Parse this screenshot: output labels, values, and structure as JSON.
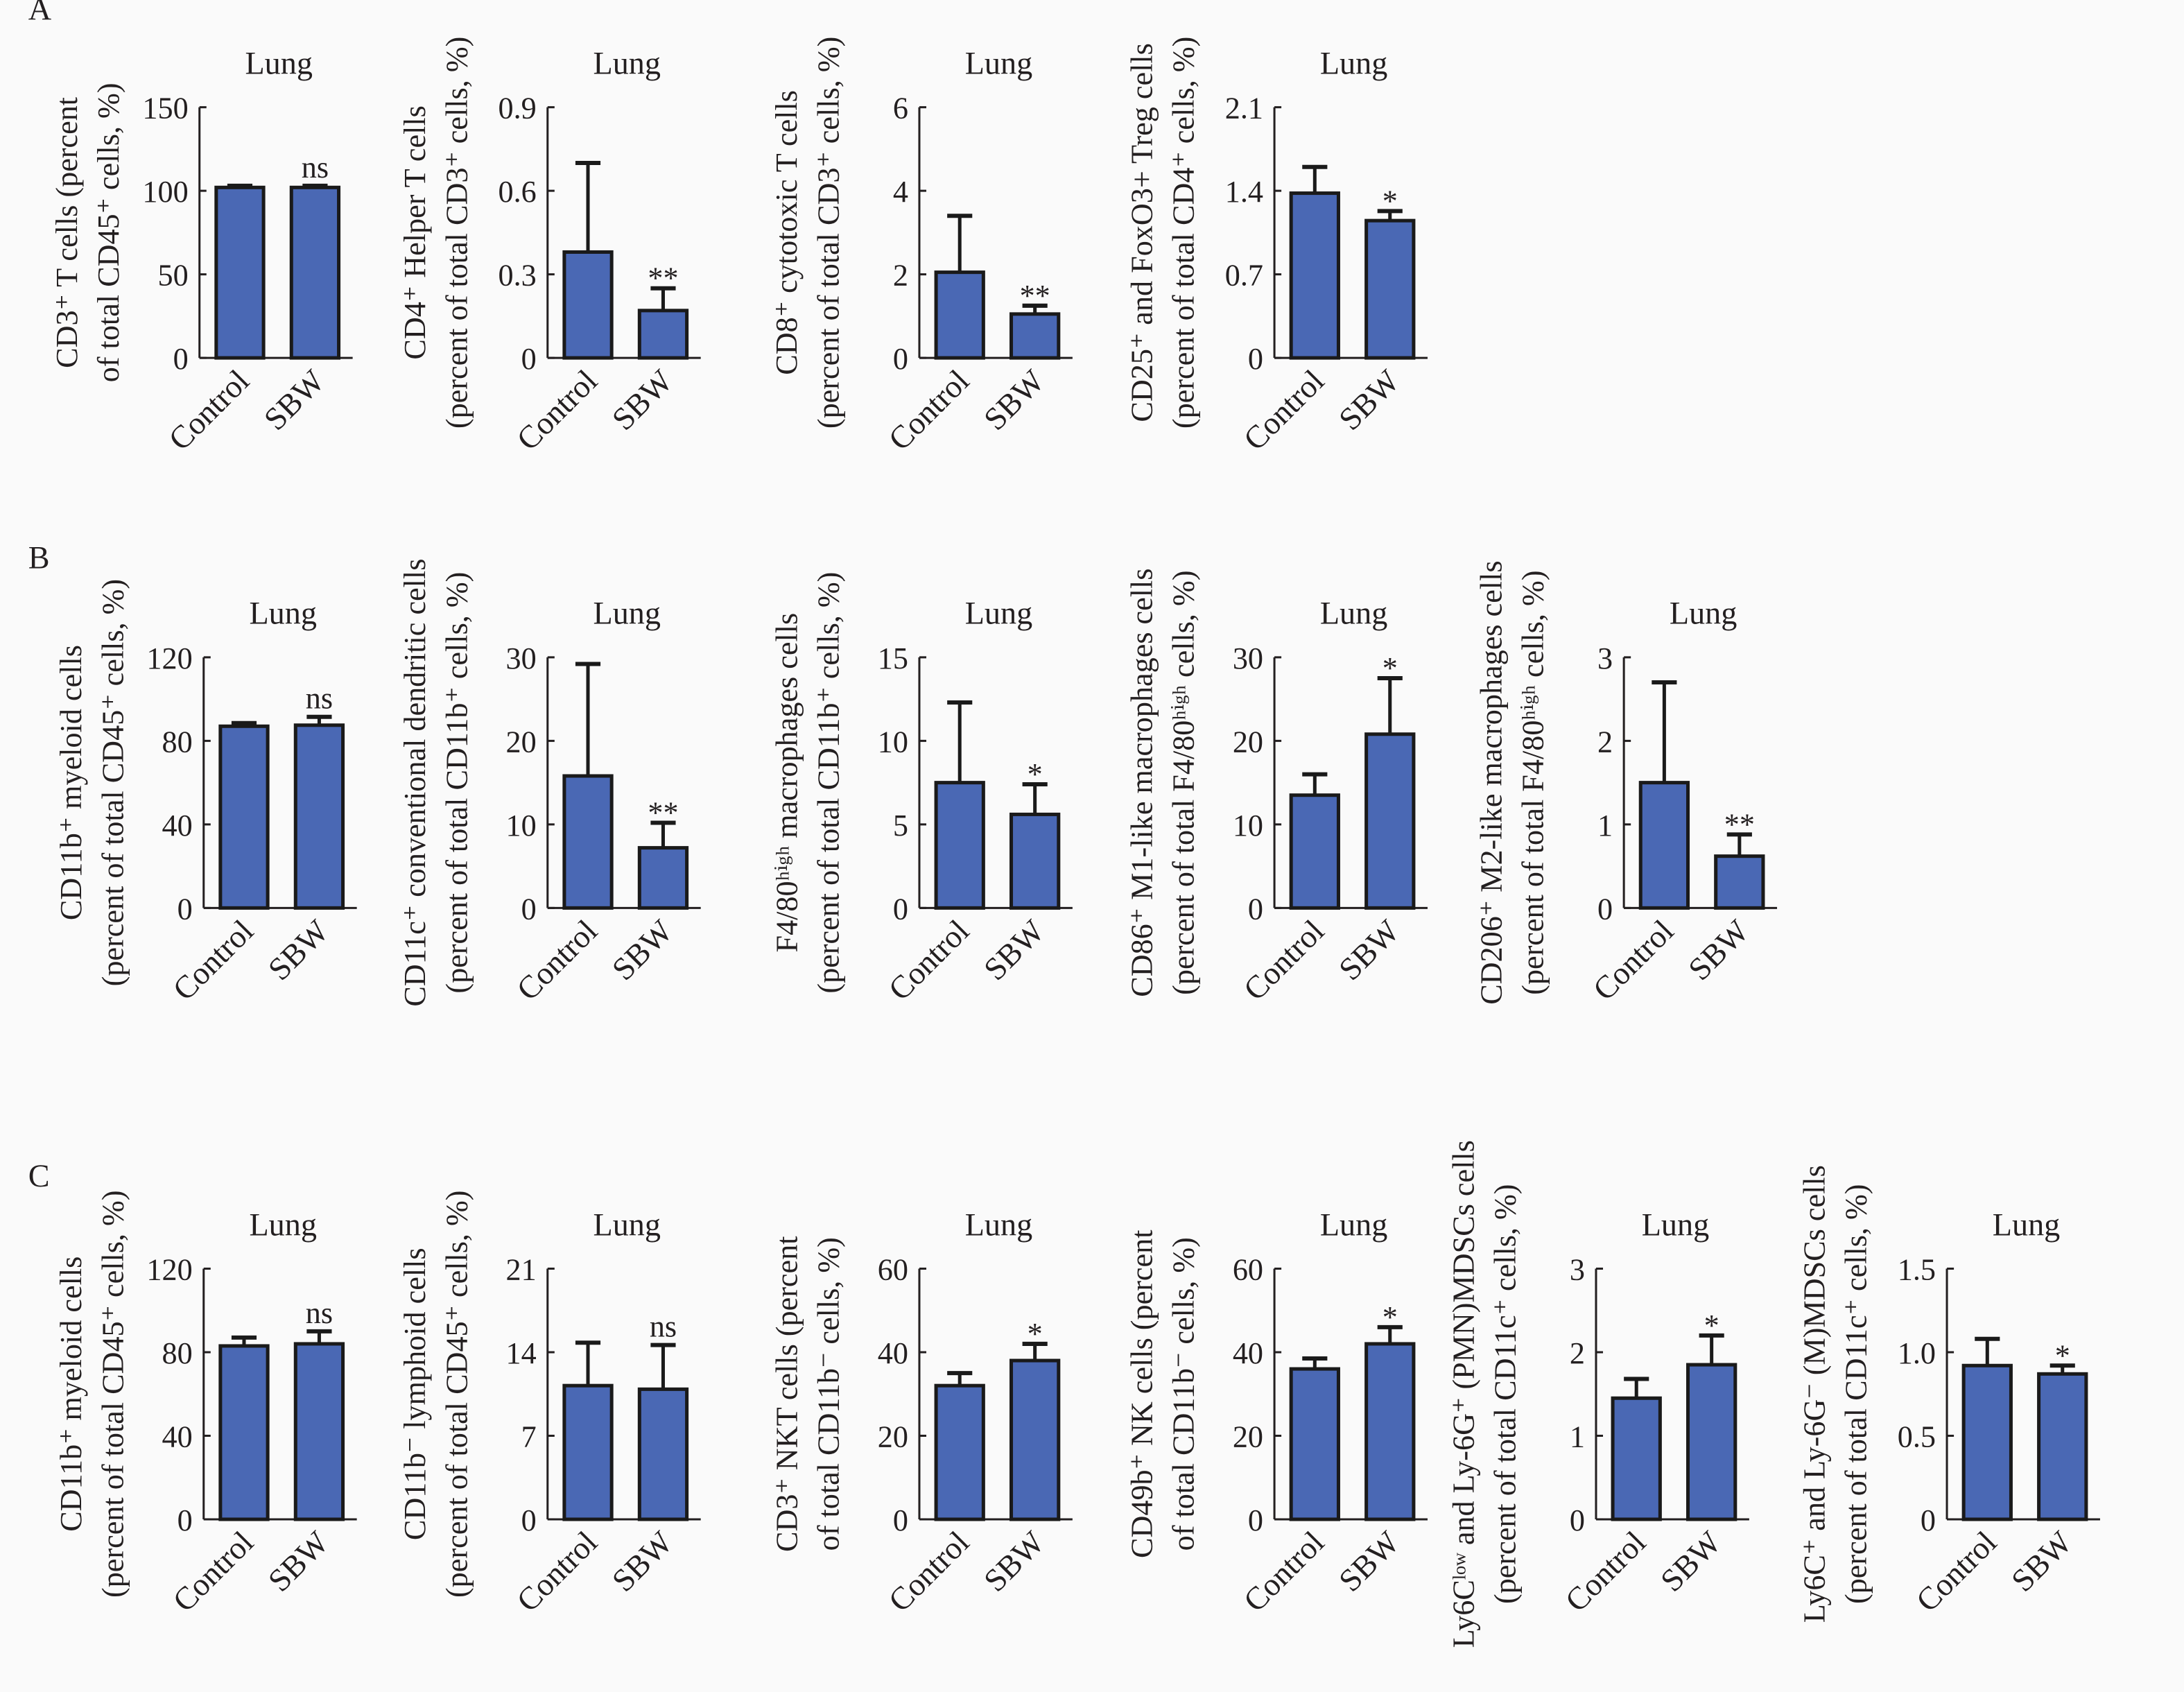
{
  "colors": {
    "bar": "#4a68b4",
    "outline": "#1a1a1a"
  },
  "chart_data": [
    {
      "panel": "A",
      "type": "bar",
      "title": "Lung",
      "ylabel": [
        "CD3⁺ T cells (percent",
        "of total CD45⁺ cells, %)"
      ],
      "categories": [
        "Control",
        "SBW"
      ],
      "values": [
        102,
        102
      ],
      "error_upper": [
        103,
        103
      ],
      "significance": [
        "",
        "ns"
      ],
      "ylim": [
        0,
        150
      ],
      "yticks": [
        "0",
        "50",
        "100",
        "150"
      ]
    },
    {
      "panel": "",
      "type": "bar",
      "title": "Lung",
      "ylabel": [
        "CD4⁺ Helper T cells",
        "(percent of total CD3⁺ cells, %)"
      ],
      "categories": [
        "Control",
        "SBW"
      ],
      "values": [
        0.38,
        0.17
      ],
      "error_upper": [
        0.7,
        0.25
      ],
      "significance": [
        "",
        "**"
      ],
      "ylim": [
        0,
        0.9
      ],
      "yticks": [
        "0",
        "0.3",
        "0.6",
        "0.9"
      ]
    },
    {
      "panel": "",
      "type": "bar",
      "title": "Lung",
      "ylabel": [
        "CD8⁺ cytotoxic T cells",
        "(percent of total CD3⁺ cells, %)"
      ],
      "categories": [
        "Control",
        "SBW"
      ],
      "values": [
        2.05,
        1.05
      ],
      "error_upper": [
        3.4,
        1.25
      ],
      "significance": [
        "",
        "**"
      ],
      "ylim": [
        0,
        6
      ],
      "yticks": [
        "0",
        "2",
        "4",
        "6"
      ]
    },
    {
      "panel": "",
      "type": "bar",
      "title": "Lung",
      "ylabel": [
        "CD25⁺ and FoxO3+ Treg cells",
        "(percent of total CD4⁺ cells, %)"
      ],
      "categories": [
        "Control",
        "SBW"
      ],
      "values": [
        1.38,
        1.15
      ],
      "error_upper": [
        1.6,
        1.23
      ],
      "significance": [
        "",
        "*"
      ],
      "ylim": [
        0,
        2.1
      ],
      "yticks": [
        "0",
        "0.7",
        "1.4",
        "2.1"
      ]
    },
    {
      "panel": "B",
      "type": "bar",
      "title": "Lung",
      "ylabel": [
        "CD11b⁺ myeloid cells",
        "(percent of total CD45⁺ cells, %)"
      ],
      "categories": [
        "Control",
        "SBW"
      ],
      "values": [
        87,
        87.5
      ],
      "error_upper": [
        88.5,
        91.5
      ],
      "significance": [
        "",
        "ns"
      ],
      "ylim": [
        0,
        120
      ],
      "yticks": [
        "0",
        "40",
        "80",
        "120"
      ]
    },
    {
      "panel": "",
      "type": "bar",
      "title": "Lung",
      "ylabel": [
        "CD11c⁺ conventional dendritic cells",
        "(percent of total CD11b⁺ cells, %)"
      ],
      "categories": [
        "Control",
        "SBW"
      ],
      "values": [
        15.8,
        7.2
      ],
      "error_upper": [
        29.2,
        10.2
      ],
      "significance": [
        "",
        "**"
      ],
      "ylim": [
        0,
        30
      ],
      "yticks": [
        "0",
        "10",
        "20",
        "30"
      ]
    },
    {
      "panel": "",
      "type": "bar",
      "title": "Lung",
      "ylabel": [
        "F4/80ʰⁱᵍʰ macrophages cells",
        "(percent of total CD11b⁺ cells, %)"
      ],
      "categories": [
        "Control",
        "SBW"
      ],
      "values": [
        7.5,
        5.6
      ],
      "error_upper": [
        12.3,
        7.4
      ],
      "significance": [
        "",
        "*"
      ],
      "ylim": [
        0,
        15
      ],
      "yticks": [
        "0",
        "5",
        "10",
        "15"
      ]
    },
    {
      "panel": "",
      "type": "bar",
      "title": "Lung",
      "ylabel": [
        "CD86⁺ M1-like macrophages cells",
        "(percent of total F4/80ʰⁱᵍʰ cells, %)"
      ],
      "categories": [
        "Control",
        "SBW"
      ],
      "values": [
        13.5,
        20.8
      ],
      "error_upper": [
        16,
        27.5
      ],
      "significance": [
        "",
        "*"
      ],
      "ylim": [
        0,
        30
      ],
      "yticks": [
        "0",
        "10",
        "20",
        "30"
      ]
    },
    {
      "panel": "",
      "type": "bar",
      "title": "Lung",
      "ylabel": [
        "CD206⁺ M2-like macrophages cells",
        "(percent of total F4/80ʰⁱᵍʰ cells, %)"
      ],
      "categories": [
        "Control",
        "SBW"
      ],
      "values": [
        1.5,
        0.62
      ],
      "error_upper": [
        2.7,
        0.88
      ],
      "significance": [
        "",
        "**"
      ],
      "ylim": [
        0,
        3
      ],
      "yticks": [
        "0",
        "1",
        "2",
        "3"
      ]
    },
    {
      "panel": "C",
      "type": "bar",
      "title": "Lung",
      "ylabel": [
        "CD11b⁺ myeloid cells",
        "(percent of total CD45⁺ cells, %)"
      ],
      "categories": [
        "Control",
        "SBW"
      ],
      "values": [
        83,
        84
      ],
      "error_upper": [
        87,
        90
      ],
      "significance": [
        "",
        "ns"
      ],
      "ylim": [
        0,
        120
      ],
      "yticks": [
        "0",
        "40",
        "80",
        "120"
      ]
    },
    {
      "panel": "",
      "type": "bar",
      "title": "Lung",
      "ylabel": [
        "CD11b⁻ lymphoid cells",
        "(percent of total CD45⁺ cells, %)"
      ],
      "categories": [
        "Control",
        "SBW"
      ],
      "values": [
        11.2,
        10.9
      ],
      "error_upper": [
        14.8,
        14.6
      ],
      "significance": [
        "",
        "ns"
      ],
      "ylim": [
        0,
        21
      ],
      "yticks": [
        "0",
        "7",
        "14",
        "21"
      ]
    },
    {
      "panel": "",
      "type": "bar",
      "title": "Lung",
      "ylabel": [
        "CD3⁺ NKT cells (percent",
        "of total CD11b⁻ cells, %)"
      ],
      "categories": [
        "Control",
        "SBW"
      ],
      "values": [
        32,
        38
      ],
      "error_upper": [
        35,
        42
      ],
      "significance": [
        "",
        "*"
      ],
      "ylim": [
        0,
        60
      ],
      "yticks": [
        "0",
        "20",
        "40",
        "60"
      ]
    },
    {
      "panel": "",
      "type": "bar",
      "title": "Lung",
      "ylabel": [
        "CD49b⁺ NK cells (percent",
        "of total CD11b⁻ cells, %)"
      ],
      "categories": [
        "Control",
        "SBW"
      ],
      "values": [
        36,
        42
      ],
      "error_upper": [
        38.5,
        46
      ],
      "significance": [
        "",
        "*"
      ],
      "ylim": [
        0,
        60
      ],
      "yticks": [
        "0",
        "20",
        "40",
        "60"
      ]
    },
    {
      "panel": "",
      "type": "bar",
      "title": "Lung",
      "ylabel": [
        "Ly6Cˡᵒʷ and Ly-6G⁺ (PMN)MDSCs cells",
        "(percent of total CD11c⁺ cells, %)"
      ],
      "categories": [
        "Control",
        "SBW"
      ],
      "values": [
        1.45,
        1.85
      ],
      "error_upper": [
        1.68,
        2.2
      ],
      "significance": [
        "",
        "*"
      ],
      "ylim": [
        0,
        3
      ],
      "yticks": [
        "0",
        "1",
        "2",
        "3"
      ]
    },
    {
      "panel": "",
      "type": "bar",
      "title": "Lung",
      "ylabel": [
        "Ly6C⁺ and Ly-6G⁻ (M)MDSCs cells",
        "(percent of total CD11c⁺ cells, %)"
      ],
      "categories": [
        "Control",
        "SBW"
      ],
      "values": [
        0.92,
        0.87
      ],
      "error_upper": [
        1.08,
        0.92
      ],
      "significance": [
        "",
        "*"
      ],
      "ylim": [
        0,
        1.5
      ],
      "yticks": [
        "0",
        "0.5",
        "1.0",
        "1.5"
      ]
    }
  ]
}
